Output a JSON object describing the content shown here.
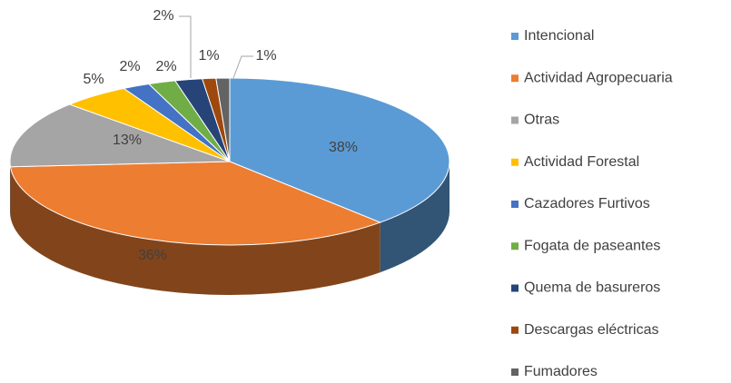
{
  "chart_data": {
    "type": "pie3d",
    "categories": [
      "Intencional",
      "Actividad Agropecuaria",
      "Otras",
      "Actividad Forestal",
      "Cazadores Furtivos",
      "Fogata de paseantes",
      "Quema de basureros",
      "Descargas eléctricas",
      "Fumadores"
    ],
    "values": [
      38,
      36,
      13,
      5,
      2,
      2,
      2,
      1,
      1
    ],
    "value_labels": [
      "38%",
      "36%",
      "13%",
      "5%",
      "2%",
      "2%",
      "2%",
      "1%",
      "1%"
    ],
    "colors": [
      "#5b9bd5",
      "#ed7d31",
      "#a5a5a5",
      "#ffc000",
      "#4472c4",
      "#70ad47",
      "#264478",
      "#9e480e",
      "#636363"
    ],
    "legend": "right"
  }
}
